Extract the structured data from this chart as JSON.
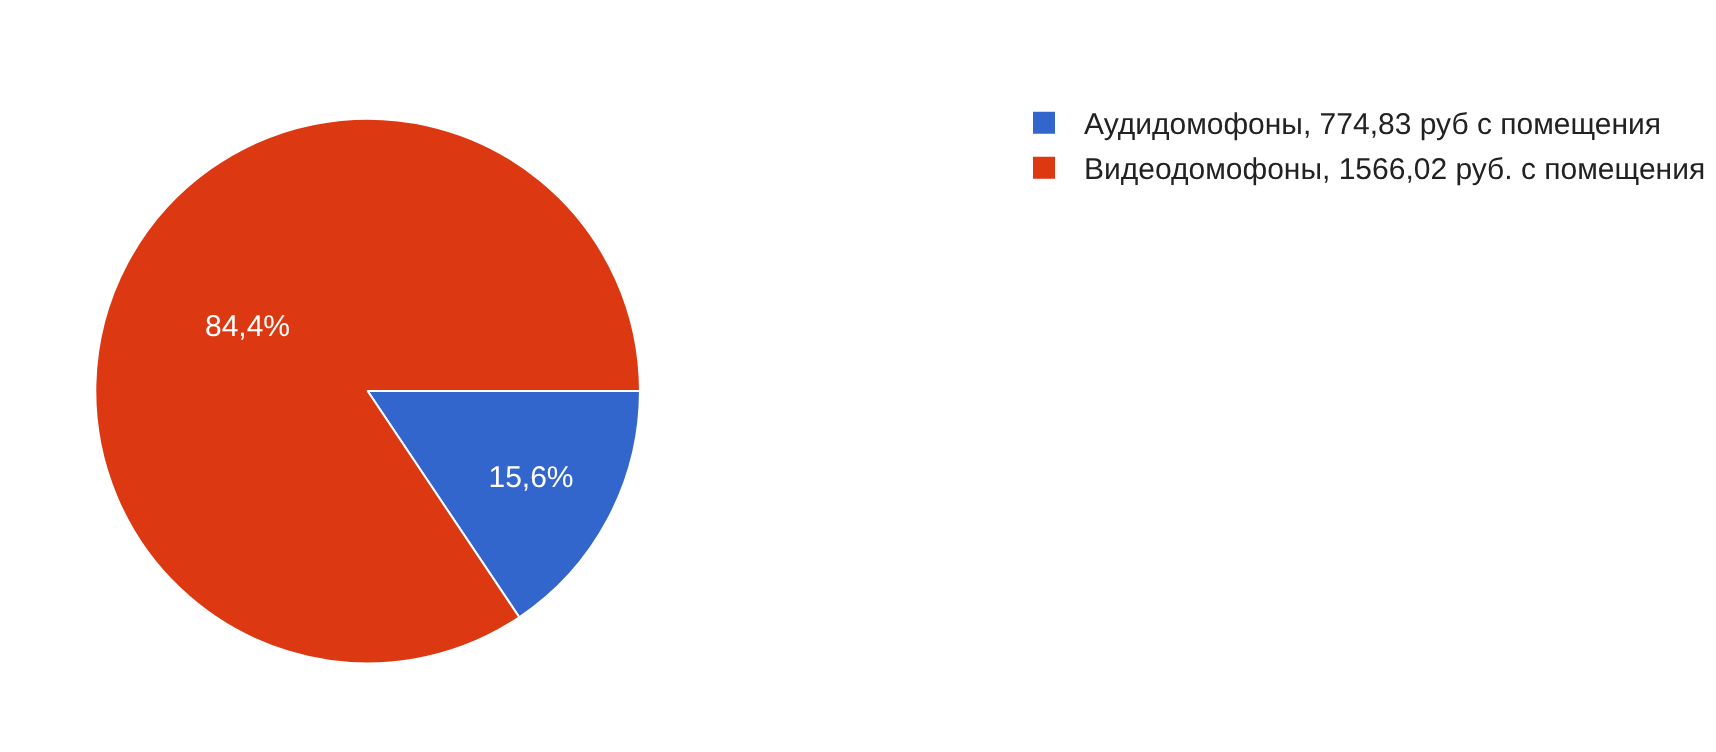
{
  "chart_data": {
    "type": "pie",
    "categories": [
      "Аудидомофоны, 774,83 руб с помещения",
      "Видеодомофоны, 1566,02 руб. с помещения"
    ],
    "values": [
      15.6,
      84.4
    ],
    "colors": [
      "#3366cc",
      "#dc3912"
    ],
    "value_labels": [
      "15,6%",
      "84,4%"
    ],
    "legend": "top right"
  }
}
